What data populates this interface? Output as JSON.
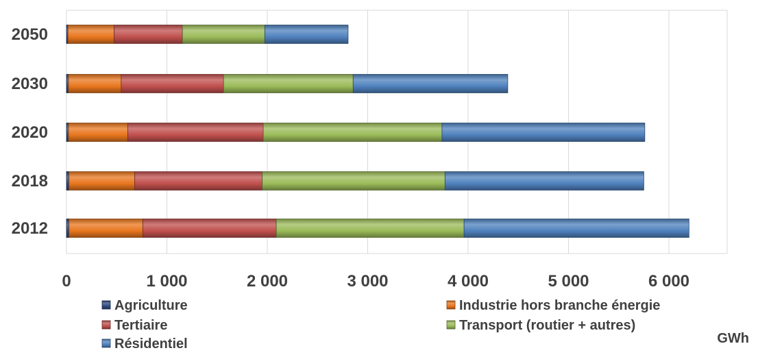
{
  "chart_data": {
    "type": "bar",
    "orientation": "horizontal",
    "stacked": true,
    "categories": [
      "2012",
      "2018",
      "2020",
      "2030",
      "2050"
    ],
    "series": [
      {
        "name": "Agriculture",
        "color": "#2e4a7f",
        "values": [
          25,
          25,
          20,
          20,
          15
        ]
      },
      {
        "name": "Industrie hors branche énergie",
        "color": "#e8761e",
        "values": [
          735,
          655,
          590,
          525,
          460
        ]
      },
      {
        "name": "Tertiaire",
        "color": "#c0504d",
        "values": [
          1330,
          1270,
          1350,
          1020,
          680
        ]
      },
      {
        "name": "Transport (routier + autres)",
        "color": "#9bbb59",
        "values": [
          1870,
          1820,
          1780,
          1290,
          820
        ]
      },
      {
        "name": "Résidentiel",
        "color": "#4f81bd",
        "values": [
          2240,
          1980,
          2020,
          1540,
          830
        ]
      }
    ],
    "x_ticks": [
      "0",
      "1 000",
      "2 000",
      "3 000",
      "4 000",
      "5 000",
      "6 000"
    ],
    "xlim": [
      0,
      6500
    ],
    "unit_label": "GWh",
    "grid": "vertical",
    "legend_position": "bottom"
  }
}
